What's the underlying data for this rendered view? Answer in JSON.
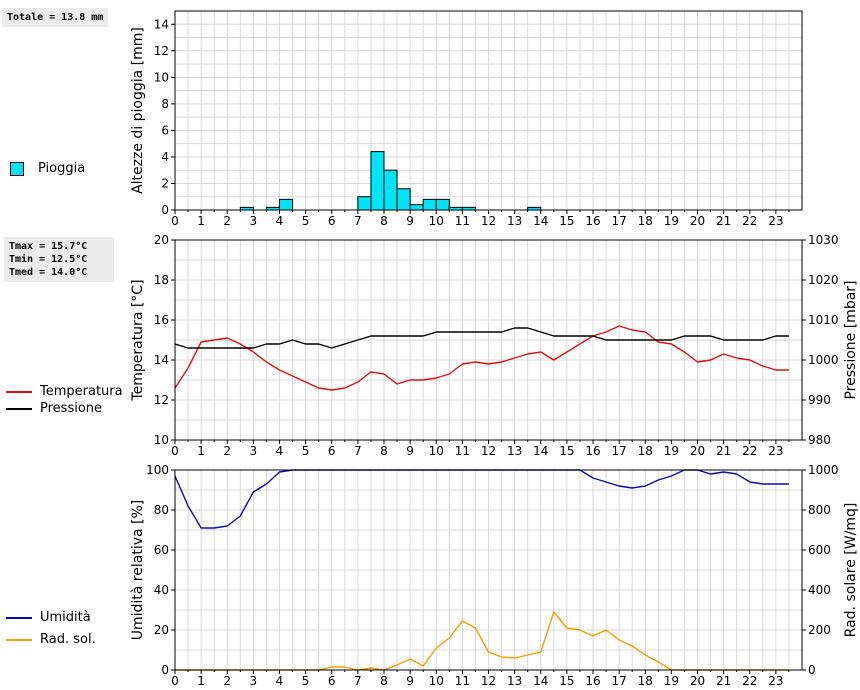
{
  "summaries": {
    "rain_total": "Totale = 13.8 mm",
    "tmax": "Tmax = 15.7°C",
    "tmin": "Tmin = 12.5°C",
    "tmed": "Tmed = 14.0°C"
  },
  "colors": {
    "rain": "#00e5f5",
    "temperature": "#dd1111",
    "pressure": "#000000",
    "humidity": "#0a0ab4",
    "solar": "#f0a000"
  },
  "chart_data": [
    {
      "type": "bar",
      "ylabel": "Altezze di pioggia [mm]",
      "xlim": [
        0,
        24
      ],
      "ylim": [
        0,
        15
      ],
      "yticks": [
        0,
        2,
        4,
        6,
        8,
        10,
        12,
        14
      ],
      "xticks": [
        0,
        1,
        2,
        3,
        4,
        5,
        6,
        7,
        8,
        9,
        10,
        11,
        12,
        13,
        14,
        15,
        16,
        17,
        18,
        19,
        20,
        21,
        22,
        23
      ],
      "grid": true,
      "legend": "left",
      "series": [
        {
          "name": "Pioggia",
          "bar_width": 0.5,
          "x": [
            2.5,
            3.5,
            4.0,
            7.0,
            7.5,
            8.0,
            8.5,
            9.0,
            9.5,
            10.0,
            10.5,
            11.0,
            13.5
          ],
          "values": [
            0.2,
            0.2,
            0.8,
            1.0,
            4.4,
            3.0,
            1.6,
            0.4,
            0.8,
            0.8,
            0.2,
            0.2,
            0.2
          ]
        }
      ]
    },
    {
      "type": "line",
      "ylabel": "Temperatura [°C]",
      "y2label": "Pressione [mbar]",
      "xlim": [
        0,
        24
      ],
      "ylim": [
        10,
        20
      ],
      "y2lim": [
        980,
        1030
      ],
      "yticks": [
        10,
        12,
        14,
        16,
        18,
        20
      ],
      "y2ticks": [
        980,
        990,
        1000,
        1010,
        1020,
        1030
      ],
      "xticks": [
        0,
        1,
        2,
        3,
        4,
        5,
        6,
        7,
        8,
        9,
        10,
        11,
        12,
        13,
        14,
        15,
        16,
        17,
        18,
        19,
        20,
        21,
        22,
        23
      ],
      "grid": true,
      "legend": "left",
      "series": [
        {
          "name": "Temperatura",
          "axis": "left",
          "x": [
            0,
            0.5,
            1,
            1.5,
            2,
            2.5,
            3,
            3.5,
            4,
            4.5,
            5,
            5.5,
            6,
            6.5,
            7,
            7.5,
            8,
            8.5,
            9,
            9.5,
            10,
            10.5,
            11,
            11.5,
            12,
            12.5,
            13,
            13.5,
            14,
            14.5,
            15,
            15.5,
            16,
            16.5,
            17,
            17.5,
            18,
            18.5,
            19,
            19.5,
            20,
            20.5,
            21,
            21.5,
            22,
            22.5,
            23,
            23.5
          ],
          "values": [
            12.6,
            13.6,
            14.9,
            15.0,
            15.1,
            14.8,
            14.4,
            13.9,
            13.5,
            13.2,
            12.9,
            12.6,
            12.5,
            12.6,
            12.9,
            13.4,
            13.3,
            12.8,
            13.0,
            13.0,
            13.1,
            13.3,
            13.8,
            13.9,
            13.8,
            13.9,
            14.1,
            14.3,
            14.4,
            14.0,
            14.4,
            14.8,
            15.2,
            15.4,
            15.7,
            15.5,
            15.4,
            14.9,
            14.8,
            14.4,
            13.9,
            14.0,
            14.3,
            14.1,
            14.0,
            13.7,
            13.5,
            13.5
          ]
        },
        {
          "name": "Pressione",
          "axis": "right",
          "x": [
            0,
            0.5,
            1,
            1.5,
            2,
            2.5,
            3,
            3.5,
            4,
            4.5,
            5,
            5.5,
            6,
            6.5,
            7,
            7.5,
            8,
            8.5,
            9,
            9.5,
            10,
            10.5,
            11,
            11.5,
            12,
            12.5,
            13,
            13.5,
            14,
            14.5,
            15,
            15.5,
            16,
            16.5,
            17,
            17.5,
            18,
            18.5,
            19,
            19.5,
            20,
            20.5,
            21,
            21.5,
            22,
            22.5,
            23,
            23.5
          ],
          "values": [
            1004,
            1003,
            1003,
            1003,
            1003,
            1003,
            1003,
            1004,
            1004,
            1005,
            1004,
            1004,
            1003,
            1004,
            1005,
            1006,
            1006,
            1006,
            1006,
            1006,
            1007,
            1007,
            1007,
            1007,
            1007,
            1007,
            1008,
            1008,
            1007,
            1006,
            1006,
            1006,
            1006,
            1005,
            1005,
            1005,
            1005,
            1005,
            1005,
            1006,
            1006,
            1006,
            1005,
            1005,
            1005,
            1005,
            1006,
            1006
          ]
        }
      ]
    },
    {
      "type": "line",
      "ylabel": "Umidità relativa [%]",
      "y2label": "Rad. solare [W/mq]",
      "xlim": [
        0,
        24
      ],
      "ylim": [
        0,
        100
      ],
      "y2lim": [
        0,
        1000
      ],
      "yticks": [
        0,
        20,
        40,
        60,
        80,
        100
      ],
      "y2ticks": [
        0,
        200,
        400,
        600,
        800,
        1000
      ],
      "xticks": [
        0,
        1,
        2,
        3,
        4,
        5,
        6,
        7,
        8,
        9,
        10,
        11,
        12,
        13,
        14,
        15,
        16,
        17,
        18,
        19,
        20,
        21,
        22,
        23
      ],
      "grid": true,
      "legend": "left",
      "series": [
        {
          "name": "Umidità",
          "axis": "left",
          "x": [
            0,
            0.5,
            1,
            1.5,
            2,
            2.5,
            3,
            3.5,
            4,
            4.5,
            5,
            5.5,
            6,
            6.5,
            7,
            7.5,
            8,
            8.5,
            9,
            9.5,
            10,
            10.5,
            11,
            11.5,
            12,
            12.5,
            13,
            13.5,
            14,
            14.5,
            15,
            15.5,
            16,
            16.5,
            17,
            17.5,
            18,
            18.5,
            19,
            19.5,
            20,
            20.5,
            21,
            21.5,
            22,
            22.5,
            23,
            23.5
          ],
          "values": [
            97,
            82,
            71,
            71,
            72,
            77,
            89,
            93,
            99,
            100,
            100,
            100,
            100,
            100,
            100,
            100,
            100,
            100,
            100,
            100,
            100,
            100,
            100,
            100,
            100,
            100,
            100,
            100,
            100,
            100,
            100,
            100,
            96,
            94,
            92,
            91,
            92,
            95,
            97,
            100,
            100,
            98,
            99,
            98,
            94,
            93,
            93,
            93
          ]
        },
        {
          "name": "Rad. sol.",
          "axis": "right",
          "x": [
            0,
            0.5,
            1,
            1.5,
            2,
            2.5,
            3,
            3.5,
            4,
            4.5,
            5,
            5.5,
            6,
            6.5,
            7,
            7.5,
            8,
            8.5,
            9,
            9.5,
            10,
            10.5,
            11,
            11.5,
            12,
            12.5,
            13,
            13.5,
            14,
            14.5,
            15,
            15.5,
            16,
            16.5,
            17,
            17.5,
            18,
            18.5,
            19,
            19.5,
            20,
            20.5,
            21,
            21.5,
            22,
            22.5,
            23,
            23.5
          ],
          "values": [
            0,
            0,
            0,
            0,
            0,
            0,
            0,
            0,
            0,
            0,
            0,
            0,
            15,
            15,
            0,
            10,
            0,
            25,
            55,
            20,
            110,
            160,
            245,
            210,
            90,
            65,
            60,
            75,
            90,
            290,
            210,
            200,
            170,
            200,
            150,
            120,
            75,
            40,
            0,
            0,
            0,
            0,
            0,
            0,
            0,
            0,
            0,
            0
          ]
        }
      ]
    }
  ]
}
